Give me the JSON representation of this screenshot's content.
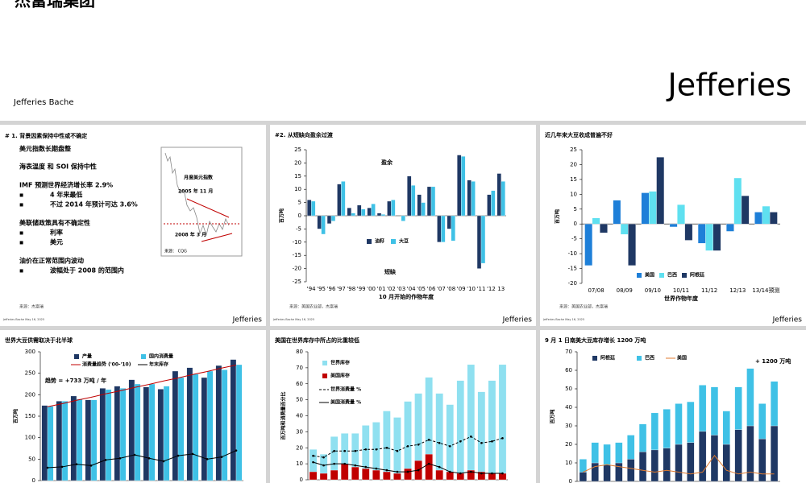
{
  "header": {
    "title": "杰富瑞集团",
    "brand": "Jefferies Bache",
    "logo": "Jefferies",
    "footer_note": "Jefferies Bache May 16, 2025"
  },
  "panel1": {
    "title": "# 1.  背景因素保持中性或不确定",
    "lines": [
      "美元指数长期盘整",
      "海表温度 和 SOI 保持中性",
      "IMF 预测世界经济增长率 2.9%",
      "4 年来最低",
      "不过 2014 年预计可达 3.6%",
      "美联储政策具有不确定性",
      "利率",
      "美元",
      "油价在正常范围内波动",
      "波幅处于 2008 的范围内"
    ],
    "inset": {
      "title": "月度美元指数",
      "note1": "2005 年 11 月",
      "note2": "2008 年 3 月",
      "source": "来源： CQG"
    },
    "source": "来源：杰富瑞"
  },
  "chart_data": [
    {
      "type": "bar",
      "title": "#2. 从短缺向盈余过渡",
      "bar_mode": "grouped",
      "y_label": "百万吨",
      "x_label": "10 月开始的作物年度",
      "source": "来源：美国农业部，杰富瑞",
      "annotations": [
        "盈余",
        "短缺"
      ],
      "categories": [
        "'94",
        "'95",
        "'96",
        "'97",
        "'98",
        "'99",
        "'00",
        "'01",
        "'02",
        "'03",
        "'04",
        "'05",
        "'06",
        "'07",
        "'08",
        "'09",
        "'10",
        "'11",
        "'12",
        "13"
      ],
      "series": [
        {
          "name": "油籽",
          "kind": "bar",
          "color": "#1f3864",
          "values": [
            6,
            -5,
            -3,
            12,
            3,
            4,
            3,
            1,
            5.5,
            0,
            15,
            8,
            11,
            -10,
            -5,
            23,
            13.5,
            -20,
            8,
            16
          ]
        },
        {
          "name": "大豆",
          "kind": "bar",
          "color": "#3fc1e6",
          "values": [
            5.5,
            -7,
            -2,
            13,
            1,
            2.5,
            4.5,
            0.5,
            6,
            -2,
            11.5,
            5,
            11,
            -10,
            -9.5,
            22.5,
            13,
            -18,
            9.5,
            13
          ]
        }
      ],
      "ylim": [
        -25,
        25
      ],
      "yticks": [
        -25,
        -20,
        -15,
        -10,
        -5,
        0,
        5,
        10,
        15,
        20,
        25
      ]
    },
    {
      "type": "bar",
      "title": "近几年来大豆收成普遍不好",
      "bar_mode": "grouped",
      "y_label": "百万吨",
      "x_label": "世界作物年度",
      "source": "来源：美国农业部，杰富瑞",
      "categories": [
        "07/08",
        "08/09",
        "09/10",
        "10/11",
        "11/12",
        "12/13",
        "13/14预测"
      ],
      "series": [
        {
          "name": "美国",
          "kind": "bar",
          "color": "#1e7fd8",
          "values": [
            -14,
            8,
            10.5,
            -1,
            -6.5,
            -2.5,
            4
          ]
        },
        {
          "name": "巴西",
          "kind": "bar",
          "color": "#5fe0f0",
          "values": [
            2,
            -3.5,
            11,
            6.5,
            -9,
            15.5,
            6
          ]
        },
        {
          "name": "阿根廷",
          "kind": "bar",
          "color": "#1f3864",
          "values": [
            -3,
            -14,
            22.5,
            -5.5,
            -9,
            9.5,
            4
          ]
        }
      ],
      "ylim": [
        -20,
        25
      ],
      "yticks": [
        -20,
        -15,
        -10,
        -5,
        0,
        5,
        10,
        15,
        20,
        25
      ]
    },
    {
      "type": "bar",
      "title": "世界大豆供需取决于北半球",
      "bar_mode": "grouped",
      "y_label": "百万吨",
      "annotations": [
        "趋势 = +733 万吨 / 年"
      ],
      "series": [
        {
          "name": "产量",
          "kind": "bar",
          "color": "#1f3864",
          "values": [
            175,
            185,
            197,
            188,
            215,
            220,
            235,
            218,
            213,
            255,
            263,
            240,
            268,
            282
          ]
        },
        {
          "name": "国内消费量",
          "kind": "bar",
          "color": "#3fc1e6",
          "values": [
            173,
            185,
            190,
            188,
            212,
            215,
            225,
            225,
            220,
            240,
            248,
            255,
            258,
            270
          ]
        },
        {
          "name": "消费量趋势 ('00-'10)",
          "kind": "line",
          "color": "#c00000",
          "values": [
            172,
            179,
            187,
            194,
            202,
            209,
            217,
            224,
            232,
            239,
            247,
            254,
            262,
            269
          ]
        },
        {
          "name": "年末库存",
          "kind": "line",
          "color": "#000000",
          "marker": true,
          "values": [
            30,
            32,
            38,
            35,
            48,
            52,
            60,
            52,
            45,
            58,
            62,
            50,
            55,
            70
          ]
        }
      ],
      "ylim": [
        0,
        300
      ],
      "yticks": [
        0,
        50,
        100,
        150,
        200,
        250,
        300
      ]
    },
    {
      "type": "bar",
      "title": "美国在世界库存中所占的比重较低",
      "bar_mode": "overlay",
      "y_label": "百万吨和消费量百分比",
      "series": [
        {
          "name": "世界库存",
          "kind": "bar",
          "color": "#8fe0f0",
          "values": [
            19,
            16,
            27,
            29,
            29,
            34,
            36,
            43,
            39,
            49,
            54,
            64,
            54,
            47,
            62,
            72,
            55,
            62,
            72
          ]
        },
        {
          "name": "美国库存",
          "kind": "bar",
          "color": "#c00000",
          "values": [
            5,
            4,
            6,
            10,
            8,
            7,
            6,
            5,
            4,
            7,
            12,
            16,
            6,
            5,
            4,
            6,
            5,
            4,
            4
          ]
        },
        {
          "name": "世界消费量 %",
          "kind": "line",
          "color": "#000000",
          "dash": true,
          "marker": true,
          "values": [
            15,
            14,
            18,
            18,
            18,
            19,
            19,
            20,
            18,
            21,
            22,
            25,
            23,
            21,
            24,
            27,
            23,
            24,
            26
          ]
        },
        {
          "name": "美国消费量 %",
          "kind": "line",
          "color": "#000000",
          "marker": true,
          "values": [
            11,
            9,
            10,
            10,
            9,
            8,
            7,
            6,
            5,
            5,
            6,
            10,
            8,
            5,
            4,
            5,
            4,
            4,
            4
          ]
        }
      ],
      "ylim": [
        0,
        80
      ],
      "yticks": [
        0,
        10,
        20,
        30,
        40,
        50,
        60,
        70,
        80
      ]
    },
    {
      "type": "bar",
      "title": "9 月 1 日南美大豆库存增长 1200 万吨",
      "bar_mode": "stacked",
      "y_label": "百万吨",
      "annotations": [
        "+ 1200 万吨"
      ],
      "series": [
        {
          "name": "阿根廷",
          "kind": "bar",
          "color": "#1f3864",
          "values": [
            5,
            10,
            9,
            10,
            12,
            16,
            17,
            18,
            20,
            21,
            27,
            25,
            20,
            28,
            30,
            23,
            30
          ]
        },
        {
          "name": "巴西",
          "kind": "bar",
          "color": "#3fc1e6",
          "values": [
            7,
            11,
            11,
            11,
            13,
            15,
            20,
            21,
            22,
            22,
            25,
            26,
            18,
            23,
            31,
            19,
            24
          ]
        },
        {
          "name": "美国",
          "kind": "line",
          "color": "#e07b30",
          "values": [
            5,
            8,
            9,
            8,
            7,
            6,
            5,
            6,
            5,
            4,
            5,
            14,
            6,
            4,
            5,
            4,
            4
          ]
        }
      ],
      "ylim": [
        0,
        70
      ],
      "yticks": [
        0,
        10,
        20,
        30,
        40,
        50,
        60,
        70
      ]
    }
  ]
}
